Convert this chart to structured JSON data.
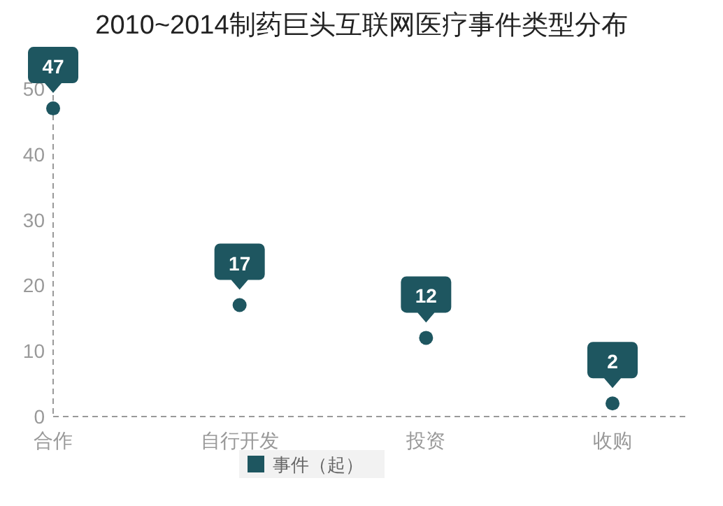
{
  "chart_data": {
    "type": "scatter",
    "title": "2010~2014制药巨头互联网医疗事件类型分布",
    "categories": [
      "合作",
      "自行开发",
      "投资",
      "收购"
    ],
    "series": [
      {
        "name": "事件（起）",
        "color": "#1e5660",
        "values": [
          47,
          17,
          12,
          2
        ]
      }
    ],
    "ylim": [
      0,
      55
    ],
    "yticks": [
      0,
      10,
      20,
      30,
      40,
      50
    ],
    "data_labels": true,
    "marker": "circle",
    "legend": "bottom",
    "grid": false
  }
}
